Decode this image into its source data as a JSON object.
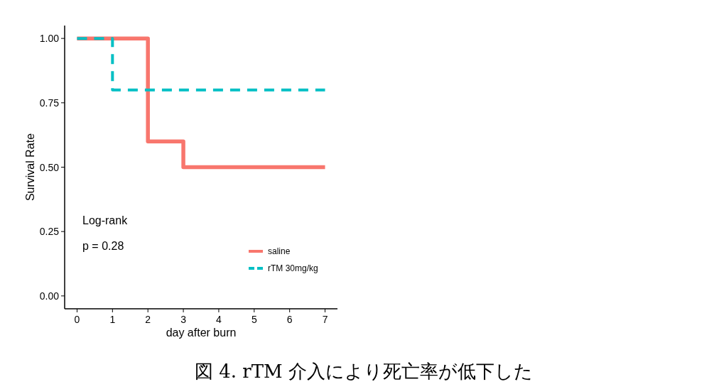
{
  "chart_data": {
    "type": "step",
    "xlabel": "day after burn",
    "ylabel": "Survival Rate",
    "annotations": [
      "Log-rank",
      "p = 0.28",
      "図 4. rTM 介入により死亡率が低下した"
    ],
    "xlim": [
      -0.35,
      7.35
    ],
    "ylim": [
      -0.05,
      1.05
    ],
    "xticks": [
      0,
      1,
      2,
      3,
      4,
      5,
      6,
      7
    ],
    "yticks": [
      {
        "value": 0,
        "label": "0.00"
      },
      {
        "value": 0.25,
        "label": "0.25"
      },
      {
        "value": 0.5,
        "label": "0.50"
      },
      {
        "value": 0.75,
        "label": "0.75"
      },
      {
        "value": 1,
        "label": "1.00"
      }
    ],
    "grid": false,
    "legend": "bottom right",
    "series": [
      {
        "name": "saline",
        "color": "#f8766d",
        "line_style": "solid",
        "x": [
          0,
          2,
          3,
          7
        ],
        "values": [
          1,
          0.6,
          0.5,
          0.5
        ]
      },
      {
        "name": "rTM 30mg/kg",
        "color": "#00bfc4",
        "line_style": "dashed",
        "x": [
          0,
          1,
          7
        ],
        "values": [
          1,
          0.8,
          0.8
        ]
      }
    ]
  }
}
